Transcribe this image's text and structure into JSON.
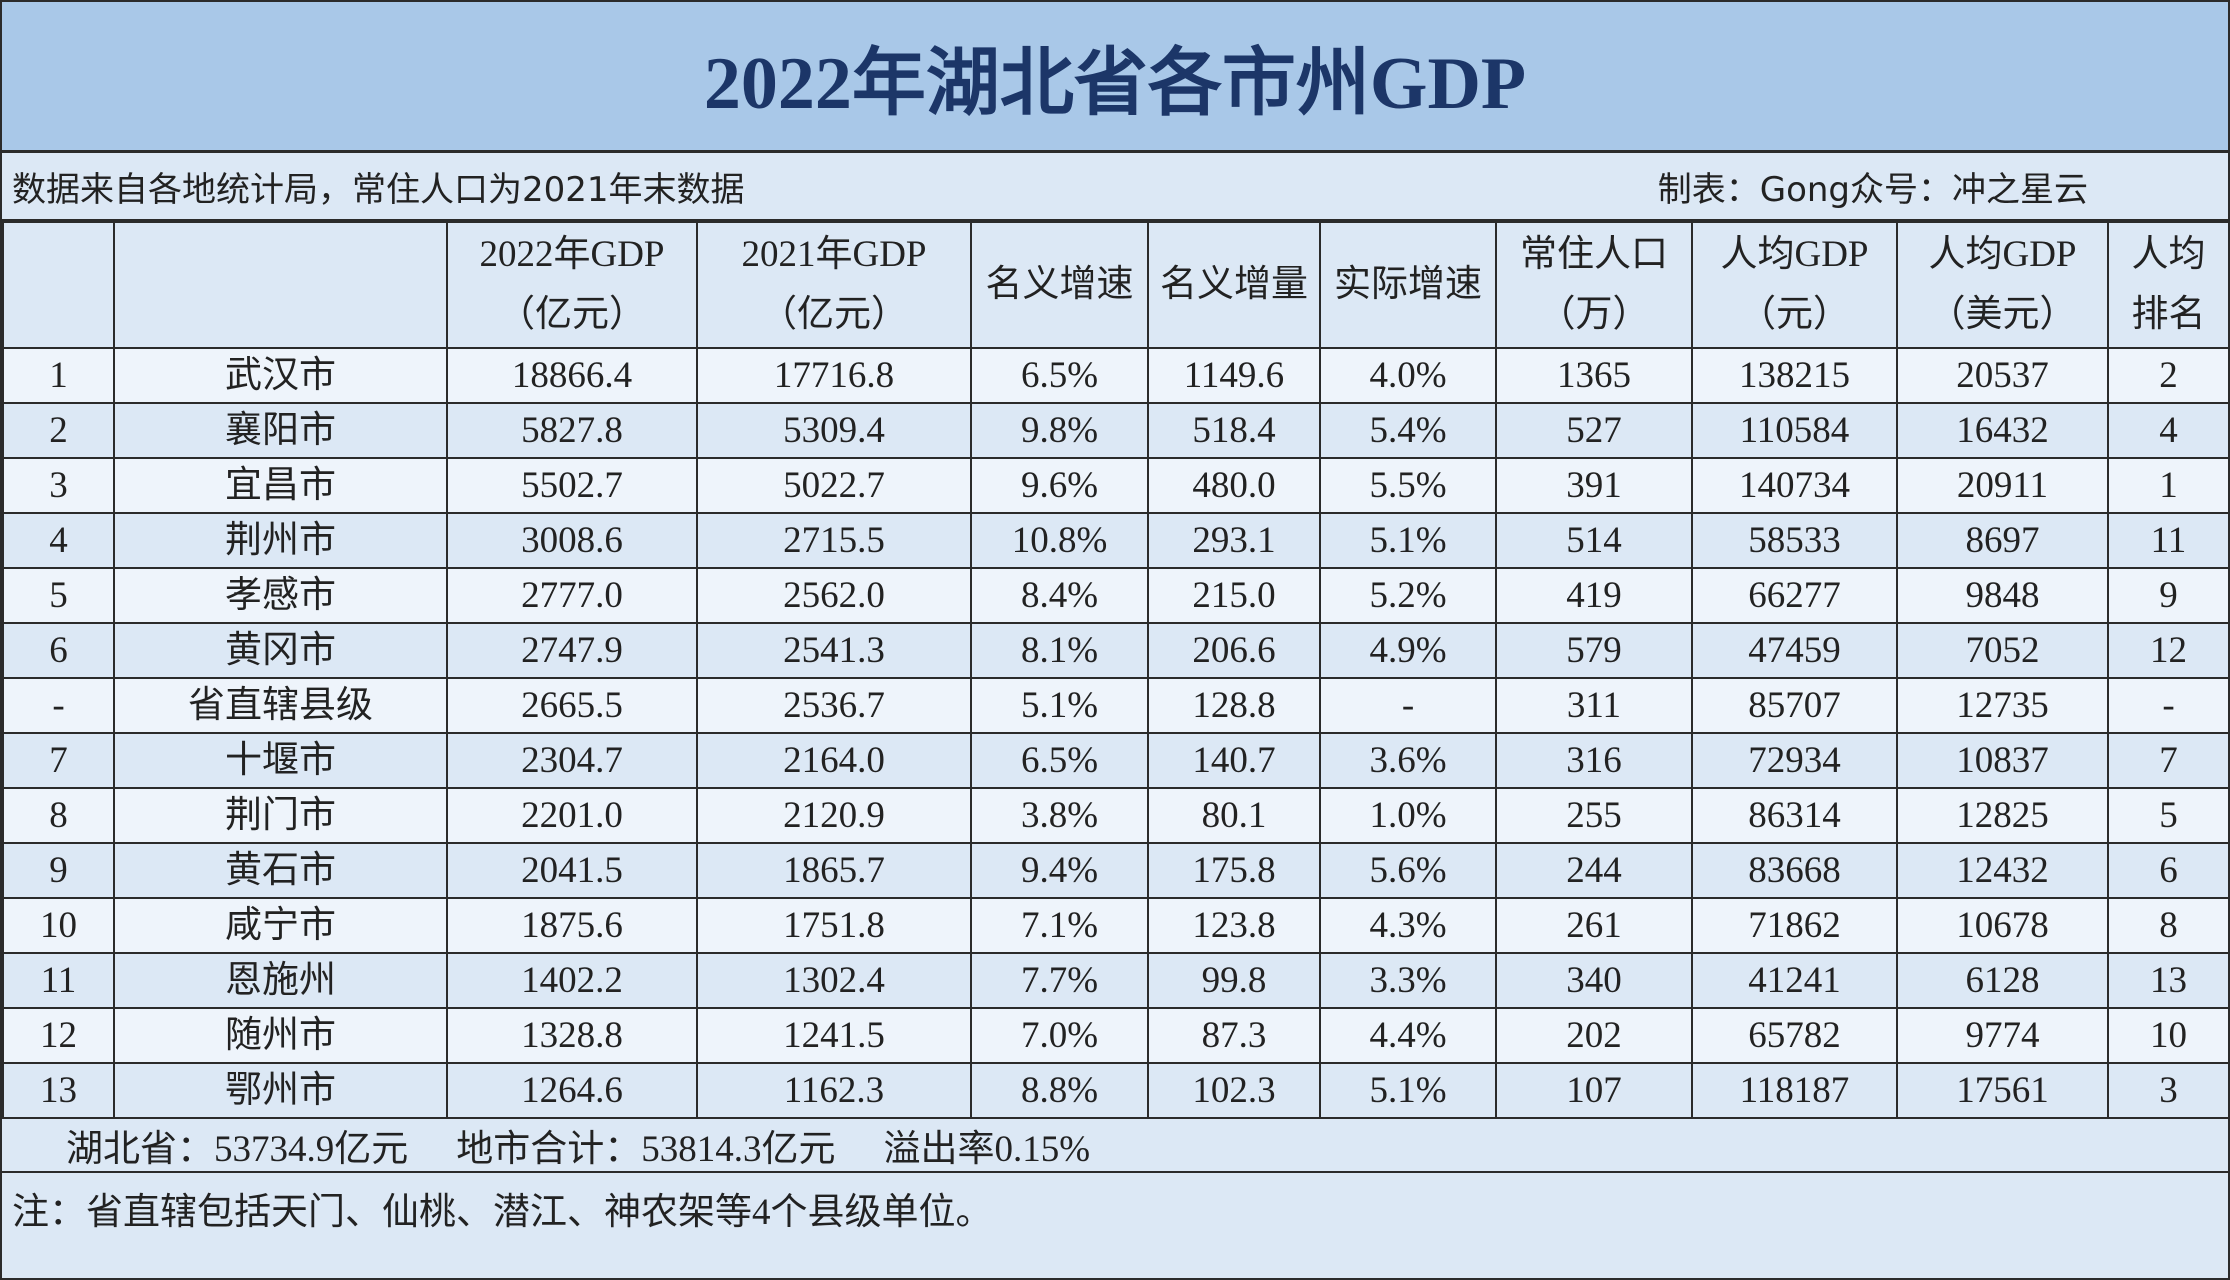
{
  "title": "2022年湖北省各市州GDP",
  "info": {
    "source": "数据来自各地统计局，常住人口为2021年末数据",
    "author": "制表：Gong众号：冲之星云"
  },
  "table": {
    "headers": [
      [
        "2022年GDP",
        "（亿元）"
      ],
      [
        "2021年GDP",
        "（亿元）"
      ],
      [
        "名义增速"
      ],
      [
        "名义增量"
      ],
      [
        "实际增速"
      ],
      [
        "常住人口",
        "（万）"
      ],
      [
        "人均GDP",
        "（元）"
      ],
      [
        "人均GDP",
        "（美元）"
      ],
      [
        "人均",
        "排名"
      ]
    ],
    "rows": [
      [
        "1",
        "武汉市",
        "18866.4",
        "17716.8",
        "6.5%",
        "1149.6",
        "4.0%",
        "1365",
        "138215",
        "20537",
        "2"
      ],
      [
        "2",
        "襄阳市",
        "5827.8",
        "5309.4",
        "9.8%",
        "518.4",
        "5.4%",
        "527",
        "110584",
        "16432",
        "4"
      ],
      [
        "3",
        "宜昌市",
        "5502.7",
        "5022.7",
        "9.6%",
        "480.0",
        "5.5%",
        "391",
        "140734",
        "20911",
        "1"
      ],
      [
        "4",
        "荆州市",
        "3008.6",
        "2715.5",
        "10.8%",
        "293.1",
        "5.1%",
        "514",
        "58533",
        "8697",
        "11"
      ],
      [
        "5",
        "孝感市",
        "2777.0",
        "2562.0",
        "8.4%",
        "215.0",
        "5.2%",
        "419",
        "66277",
        "9848",
        "9"
      ],
      [
        "6",
        "黄冈市",
        "2747.9",
        "2541.3",
        "8.1%",
        "206.6",
        "4.9%",
        "579",
        "47459",
        "7052",
        "12"
      ],
      [
        "-",
        "省直辖县级",
        "2665.5",
        "2536.7",
        "5.1%",
        "128.8",
        "-",
        "311",
        "85707",
        "12735",
        "-"
      ],
      [
        "7",
        "十堰市",
        "2304.7",
        "2164.0",
        "6.5%",
        "140.7",
        "3.6%",
        "316",
        "72934",
        "10837",
        "7"
      ],
      [
        "8",
        "荆门市",
        "2201.0",
        "2120.9",
        "3.8%",
        "80.1",
        "1.0%",
        "255",
        "86314",
        "12825",
        "5"
      ],
      [
        "9",
        "黄石市",
        "2041.5",
        "1865.7",
        "9.4%",
        "175.8",
        "5.6%",
        "244",
        "83668",
        "12432",
        "6"
      ],
      [
        "10",
        "咸宁市",
        "1875.6",
        "1751.8",
        "7.1%",
        "123.8",
        "4.3%",
        "261",
        "71862",
        "10678",
        "8"
      ],
      [
        "11",
        "恩施州",
        "1402.2",
        "1302.4",
        "7.7%",
        "99.8",
        "3.3%",
        "340",
        "41241",
        "6128",
        "13"
      ],
      [
        "12",
        "随州市",
        "1328.8",
        "1241.5",
        "7.0%",
        "87.3",
        "4.4%",
        "202",
        "65782",
        "9774",
        "10"
      ],
      [
        "13",
        "鄂州市",
        "1264.6",
        "1162.3",
        "8.8%",
        "102.3",
        "5.1%",
        "107",
        "118187",
        "17561",
        "3"
      ]
    ]
  },
  "summary": [
    "湖北省：53734.9亿元",
    "地市合计：53814.3亿元",
    "溢出率0.15%"
  ],
  "note": "注：省直辖包括天门、仙桃、潜江、神农架等4个县级单位。"
}
